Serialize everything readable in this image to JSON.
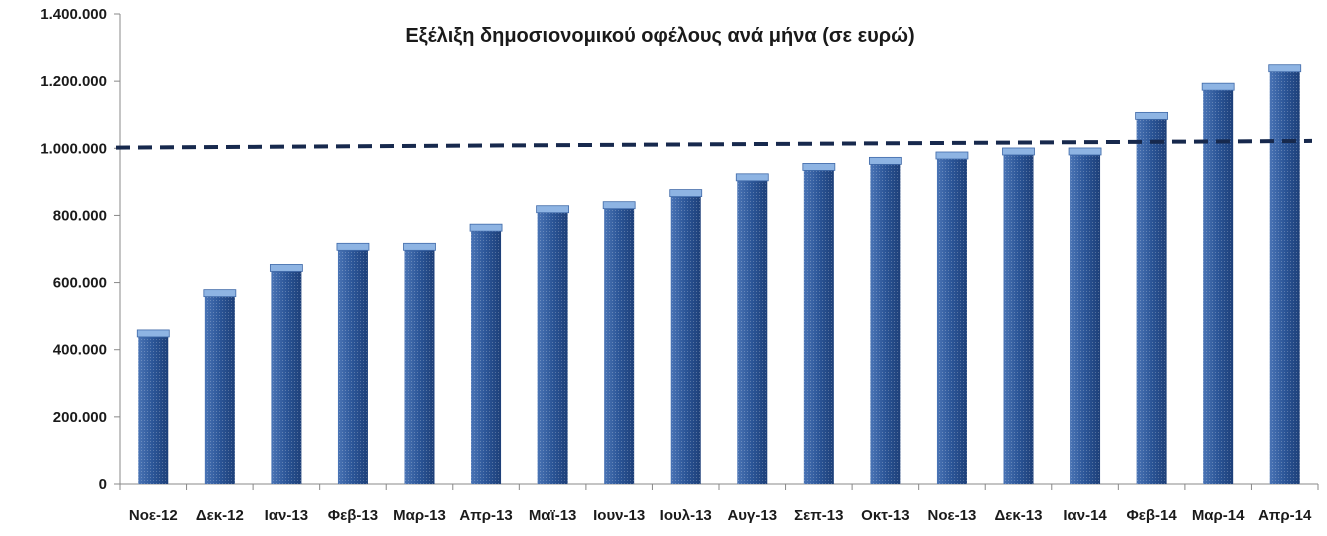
{
  "chart_data": {
    "type": "bar",
    "title": "Εξέλιξη δημοσιονομικού  οφέλους ανά μήνα (σε ευρώ)",
    "xlabel": "",
    "ylabel": "",
    "ylim": [
      0,
      1400000
    ],
    "yticks": [
      0,
      200000,
      400000,
      600000,
      800000,
      1000000,
      1200000,
      1400000
    ],
    "ytick_labels": [
      "0",
      "200.000",
      "400.000",
      "600.000",
      "800.000",
      "1.000.000",
      "1.200.000",
      "1.400.000"
    ],
    "categories": [
      "Νοε-12",
      "Δεκ-12",
      "Ιαν-13",
      "Φεβ-13",
      "Μαρ-13",
      "Απρ-13",
      "Μαϊ-13",
      "Ιουν-13",
      "Ιουλ-13",
      "Αυγ-13",
      "Σεπ-13",
      "Οκτ-13",
      "Νοε-13",
      "Δεκ-13",
      "Ιαν-14",
      "Φεβ-14",
      "Μαρ-14",
      "Απρ-14"
    ],
    "values": [
      450000,
      570000,
      645000,
      708000,
      708000,
      765000,
      820000,
      832000,
      868000,
      915000,
      946000,
      964000,
      980000,
      992000,
      992000,
      1098000,
      1185000,
      1240000
    ],
    "trend_line": {
      "from": 1002000,
      "to": 1022000
    },
    "grid": false,
    "legend": "none",
    "colors": {
      "bar": "#2b5597",
      "bar_top": "#8eb4e3",
      "trend": "#17294d",
      "axis": "#888888"
    }
  }
}
